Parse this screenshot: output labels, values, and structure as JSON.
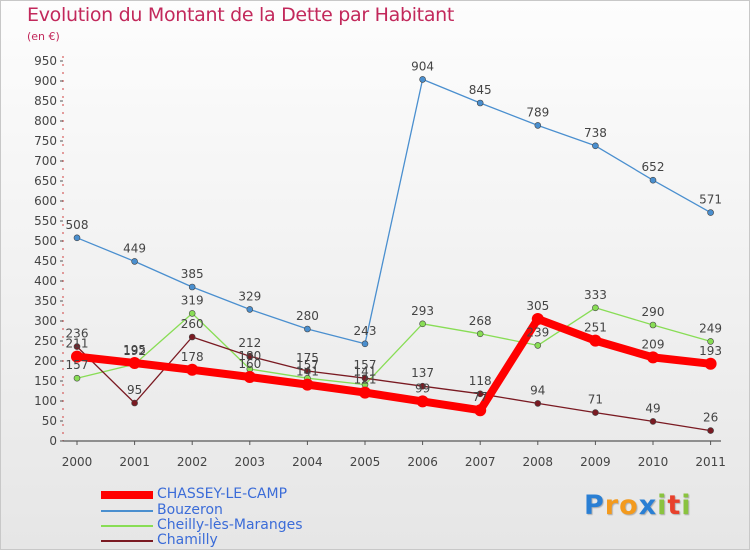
{
  "chart_data": {
    "type": "line",
    "title": "Evolution du Montant de la Dette par Habitant",
    "subtitle": "(en €)",
    "x": [
      "2000",
      "2001",
      "2002",
      "2003",
      "2004",
      "2005",
      "2006",
      "2007",
      "2008",
      "2009",
      "2010",
      "2011"
    ],
    "y_ticks": [
      0,
      50,
      100,
      150,
      200,
      250,
      300,
      350,
      400,
      450,
      500,
      550,
      600,
      650,
      700,
      750,
      800,
      850,
      900,
      950
    ],
    "ylim": [
      0,
      950
    ],
    "grid": false,
    "legend_position": "bottom-left",
    "series": [
      {
        "name": "CHASSEY-LE-CAMP",
        "color": "#ff0000",
        "values": [
          211,
          195,
          178,
          160,
          141,
          121,
          99,
          77,
          305,
          251,
          209,
          193
        ],
        "labels": [
          "211",
          "195",
          "178",
          "160",
          "141",
          "121",
          "99",
          "77",
          "305",
          "251",
          "209",
          "193"
        ]
      },
      {
        "name": "Bouzeron",
        "color": "#4a8fcf",
        "values": [
          508,
          449,
          385,
          329,
          280,
          243,
          904,
          845,
          789,
          738,
          652,
          571
        ],
        "labels": [
          "508",
          "449",
          "385",
          "329",
          "280",
          "243",
          "904",
          "845",
          "789",
          "738",
          "652",
          "571"
        ]
      },
      {
        "name": "Cheilly-lès-Maranges",
        "color": "#88dd55",
        "values": [
          157,
          192,
          319,
          180,
          157,
          141,
          293,
          268,
          239,
          333,
          290,
          249
        ],
        "labels": [
          "157",
          "192",
          "319",
          "180",
          "157",
          "141",
          "293",
          "268",
          "239",
          "333",
          "290",
          "249"
        ]
      },
      {
        "name": "Chamilly",
        "color": "#7a1a22",
        "values": [
          236,
          95,
          260,
          212,
          175,
          157,
          137,
          118,
          94,
          71,
          49,
          26
        ],
        "labels": [
          "236",
          "95",
          "260",
          "212",
          "175",
          "157",
          "137",
          "118",
          "94",
          "71",
          "49",
          "26"
        ]
      }
    ]
  },
  "logo": {
    "letters": [
      "P",
      "r",
      "o",
      "x",
      "i",
      "t",
      "i"
    ],
    "colors": [
      "#2a7fd4",
      "#f39a1d",
      "#f39a1d",
      "#2a7fd4",
      "#8ac33f",
      "#e8412c",
      "#8ac33f"
    ]
  }
}
